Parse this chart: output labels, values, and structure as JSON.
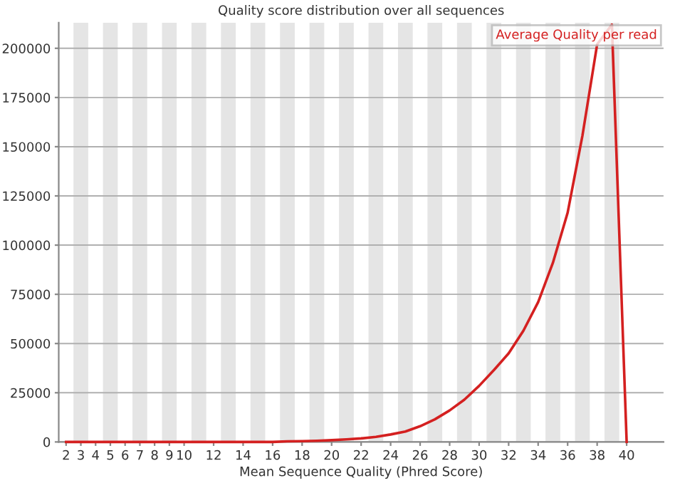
{
  "chart_data": {
    "type": "line",
    "title": "Quality score distribution over all sequences",
    "xlabel": "Mean Sequence Quality (Phred Score)",
    "x": [
      2,
      3,
      4,
      5,
      6,
      7,
      8,
      9,
      10,
      11,
      12,
      13,
      14,
      15,
      16,
      17,
      18,
      19,
      20,
      21,
      22,
      23,
      24,
      25,
      26,
      27,
      28,
      29,
      30,
      31,
      32,
      33,
      34,
      35,
      36,
      37,
      38,
      39,
      40
    ],
    "series": [
      {
        "name": "Average Quality per read",
        "color": "#d42020",
        "values": [
          0,
          0,
          0,
          0,
          0,
          0,
          0,
          0,
          0,
          0,
          0,
          0,
          0,
          0,
          0,
          300,
          400,
          600,
          900,
          1300,
          1800,
          2600,
          3800,
          5300,
          8000,
          11500,
          16000,
          21500,
          28500,
          36500,
          45000,
          56500,
          71000,
          91000,
          116500,
          155500,
          202000,
          212000,
          0
        ]
      }
    ],
    "xlim": [
      1.5,
      42.5
    ],
    "xticks": [
      2,
      3,
      4,
      5,
      6,
      7,
      8,
      9,
      10,
      12,
      14,
      16,
      18,
      20,
      22,
      24,
      26,
      28,
      30,
      32,
      34,
      36,
      38,
      40
    ],
    "ylim": [
      0,
      213000
    ],
    "yticks": [
      0,
      25000,
      50000,
      75000,
      100000,
      125000,
      150000,
      175000,
      200000
    ],
    "bands": [
      {
        "axis": "x",
        "from": 2.5,
        "to": 3.5,
        "color": "#e5e5e5"
      },
      {
        "axis": "x",
        "from": 4.5,
        "to": 5.5,
        "color": "#e5e5e5"
      },
      {
        "axis": "x",
        "from": 6.5,
        "to": 7.5,
        "color": "#e5e5e5"
      },
      {
        "axis": "x",
        "from": 8.5,
        "to": 9.5,
        "color": "#e5e5e5"
      },
      {
        "axis": "x",
        "from": 10.5,
        "to": 11.5,
        "color": "#e5e5e5"
      },
      {
        "axis": "x",
        "from": 12.5,
        "to": 13.5,
        "color": "#e5e5e5"
      },
      {
        "axis": "x",
        "from": 14.5,
        "to": 15.5,
        "color": "#e5e5e5"
      },
      {
        "axis": "x",
        "from": 16.5,
        "to": 17.5,
        "color": "#e5e5e5"
      },
      {
        "axis": "x",
        "from": 18.5,
        "to": 19.5,
        "color": "#e5e5e5"
      },
      {
        "axis": "x",
        "from": 20.5,
        "to": 21.5,
        "color": "#e5e5e5"
      },
      {
        "axis": "x",
        "from": 22.5,
        "to": 23.5,
        "color": "#e5e5e5"
      },
      {
        "axis": "x",
        "from": 24.5,
        "to": 25.5,
        "color": "#e5e5e5"
      },
      {
        "axis": "x",
        "from": 26.5,
        "to": 27.5,
        "color": "#e5e5e5"
      },
      {
        "axis": "x",
        "from": 28.5,
        "to": 29.5,
        "color": "#e5e5e5"
      },
      {
        "axis": "x",
        "from": 30.5,
        "to": 31.5,
        "color": "#e5e5e5"
      },
      {
        "axis": "x",
        "from": 32.5,
        "to": 33.5,
        "color": "#e5e5e5"
      },
      {
        "axis": "x",
        "from": 34.5,
        "to": 35.5,
        "color": "#e5e5e5"
      },
      {
        "axis": "x",
        "from": 36.5,
        "to": 37.5,
        "color": "#e5e5e5"
      },
      {
        "axis": "x",
        "from": 38.5,
        "to": 39.5,
        "color": "#e5e5e5"
      }
    ],
    "grid": "y",
    "legend": "top right",
    "marker": "none",
    "line_style": "solid"
  }
}
